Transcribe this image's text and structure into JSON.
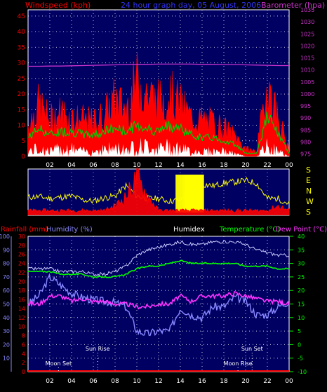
{
  "header": {
    "windspeed_label": "Windspeed (kph)",
    "title": "24 hour graph day, 05 August, 2006",
    "barometer_label": "Barometer (hpa)"
  },
  "colors": {
    "background": "#000000",
    "plot_bg": "#000063",
    "grid": "#ffffff",
    "wind": "#ff0000",
    "avg_wind": "#00cc00",
    "gust_min": "#ffffff",
    "barometer": "#cc33cc",
    "direction": "#ffff00",
    "humidity": "#8888ff",
    "humidex": "#ccccff",
    "temperature": "#00ff00",
    "dewpoint": "#ff33ff",
    "rain": "#ff0000",
    "title": "#3333ff"
  },
  "chart_data": [
    {
      "type": "area",
      "name_ref": "wind_panel",
      "x_ticks": [
        "02",
        "04",
        "06",
        "08",
        "10",
        "12",
        "14",
        "16",
        "18",
        "20",
        "22",
        "00"
      ],
      "left_axis": {
        "label_ref": "header.windspeed_label",
        "ticks": [
          0,
          5,
          10,
          15,
          20,
          25,
          30,
          35,
          40,
          45
        ],
        "ylim": [
          0,
          47
        ]
      },
      "right_axis": {
        "label_ref": "header.barometer_label",
        "ticks": [
          975,
          980,
          985,
          990,
          995,
          1000,
          1005,
          1010,
          1015,
          1020,
          1025,
          1030,
          1035
        ],
        "ylim": [
          974,
          1035
        ]
      },
      "hours": [
        0,
        1,
        2,
        3,
        4,
        5,
        6,
        7,
        8,
        9,
        10,
        11,
        12,
        13,
        14,
        15,
        16,
        17,
        18,
        19,
        20,
        21,
        22,
        23,
        24
      ],
      "gust": [
        12,
        20,
        14,
        17,
        15,
        14,
        13,
        16,
        22,
        18,
        29,
        24,
        21,
        24,
        20,
        15,
        14,
        13,
        11,
        8,
        3,
        2,
        28,
        15,
        2
      ],
      "avg_wind": [
        6,
        9,
        7,
        8,
        8,
        7,
        7,
        8,
        9,
        8,
        10,
        9,
        8,
        10,
        9,
        7,
        6,
        6,
        5,
        4,
        1,
        1,
        13,
        7,
        1
      ],
      "min_wind": [
        2,
        3,
        2,
        3,
        3,
        2,
        2,
        3,
        3,
        3,
        4,
        4,
        3,
        4,
        3,
        2,
        2,
        2,
        2,
        1,
        0,
        0,
        4,
        2,
        0
      ],
      "barometer": [
        1011.5,
        1011.5,
        1011.6,
        1011.6,
        1011.7,
        1011.8,
        1011.9,
        1012.0,
        1012.1,
        1012.2,
        1012.3,
        1012.3,
        1012.4,
        1012.4,
        1012.4,
        1012.4,
        1012.3,
        1012.3,
        1012.2,
        1012.2,
        1012.1,
        1012.0,
        1011.9,
        1011.8,
        1011.8
      ]
    },
    {
      "type": "line",
      "name_ref": "direction_panel",
      "compass_labels": [
        "S",
        "E",
        "N",
        "W",
        "S"
      ],
      "hours": [
        0,
        1,
        2,
        3,
        4,
        5,
        6,
        7,
        8,
        9,
        10,
        11,
        12,
        13,
        14,
        15,
        16,
        17,
        18,
        19,
        20,
        21,
        22,
        23,
        24
      ],
      "direction_deg": [
        140,
        145,
        130,
        140,
        150,
        120,
        110,
        135,
        150,
        230,
        150,
        130,
        130,
        110,
        120,
        200,
        240,
        230,
        250,
        260,
        270,
        250,
        130,
        130,
        90
      ],
      "wind_trace_kph": [
        1,
        1,
        1,
        1,
        1,
        1,
        1,
        1,
        2,
        4,
        8,
        4,
        1,
        1,
        1,
        1,
        1,
        1,
        1,
        1,
        1,
        1,
        1,
        2,
        1
      ]
    },
    {
      "type": "line",
      "name_ref": "temp_panel",
      "labels": {
        "rainfall": "Rainfall (mm)",
        "humidity": "Humidity (%)",
        "humidex": "Humidex",
        "temperature": "Temperature (°C)",
        "dewpoint": "Dew Point (°C)"
      },
      "x_ticks": [
        "02",
        "04",
        "06",
        "08",
        "10",
        "12",
        "14",
        "16",
        "18",
        "20",
        "22",
        "00"
      ],
      "humidity_axis": {
        "ticks": [
          10,
          20,
          30,
          40,
          50,
          60,
          70,
          80,
          90,
          100
        ]
      },
      "rain_axis": {
        "ticks": [
          0,
          2,
          4,
          6,
          8,
          10,
          12,
          14,
          16,
          18,
          20,
          22,
          24,
          26,
          28,
          30
        ]
      },
      "temp_axis": {
        "ticks": [
          -10,
          -5,
          0,
          5,
          10,
          15,
          20,
          25,
          30,
          35,
          40
        ],
        "ylim": [
          -10,
          40
        ]
      },
      "hours": [
        0,
        1,
        2,
        3,
        4,
        5,
        6,
        7,
        8,
        9,
        10,
        11,
        12,
        13,
        14,
        15,
        16,
        17,
        18,
        19,
        20,
        21,
        22,
        23,
        24
      ],
      "humidex": [
        28,
        28,
        28,
        27,
        27,
        27,
        26,
        26,
        27,
        29,
        33,
        35,
        36,
        37,
        38,
        37,
        37,
        38,
        38,
        38,
        37,
        35,
        34,
        33,
        33
      ],
      "temperature": [
        27,
        27,
        27,
        26,
        26,
        26,
        25,
        25,
        25,
        26,
        28,
        29,
        29,
        30,
        31,
        30,
        30,
        30,
        30,
        30,
        29,
        29,
        29,
        28,
        28
      ],
      "dewpoint": [
        15,
        15,
        18,
        18,
        16,
        17,
        16,
        16,
        15,
        15,
        14,
        14,
        15,
        15,
        18,
        16,
        18,
        18,
        18,
        19,
        18,
        17,
        16,
        16,
        15
      ],
      "humidity": [
        50,
        56,
        70,
        64,
        58,
        55,
        53,
        52,
        51,
        48,
        30,
        28,
        30,
        30,
        47,
        42,
        40,
        48,
        48,
        55,
        52,
        42,
        42,
        48,
        52
      ],
      "rain_total": [
        0,
        0,
        0,
        0,
        0,
        0,
        0,
        0,
        0,
        0,
        0,
        0,
        0,
        0,
        0,
        0,
        0,
        0,
        0,
        0,
        0,
        0,
        0,
        0,
        0
      ],
      "events": [
        {
          "label": "Moon Set",
          "hour": 2.8,
          "row": "low"
        },
        {
          "label": "Sun Rise",
          "hour": 6.4,
          "row": "high"
        },
        {
          "label": "Moon Rise",
          "hour": 19.3,
          "row": "low"
        },
        {
          "label": "Sun Set",
          "hour": 20.6,
          "row": "high"
        }
      ]
    }
  ]
}
